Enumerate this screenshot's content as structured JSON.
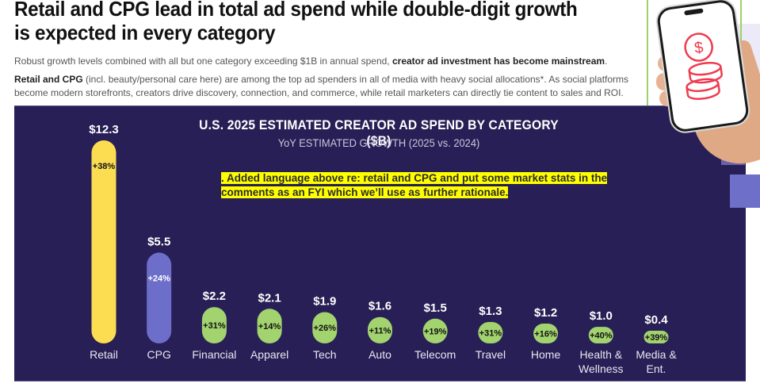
{
  "headline": "Retail and CPG lead in total ad spend while double-digit growth is expected in every category",
  "lead1": {
    "text": "Robust growth levels combined with all but one category exceeding $1B in annual spend, ",
    "bold": "creator ad investment has become mainstream",
    "end": "."
  },
  "lead2": {
    "bold": "Retail and CPG",
    "text": " (incl. beauty/personal care here) are among the top ad spenders in all of media with heavy social allocations*. As social platforms become modern storefronts, creators drive discovery, connection, and commerce, while retail marketers can directly tie content to sales and ROI."
  },
  "note": ". Added language above re: retail and CPG and put some market stats in the comments as an FYI which we’ll use as further rationale.",
  "decor": {
    "phone_icon": "dollar-coins-icon",
    "icon_color": "#ef3b4f"
  },
  "chart_data": {
    "type": "bar",
    "title": "U.S. 2025 ESTIMATED CREATOR AD SPEND BY CATEGORY ($B)",
    "subtitle": "YoY ESTIMATED GROWTH (2025 vs. 2024)",
    "xlabel": "",
    "ylabel": "",
    "ylim": [
      0,
      12.3
    ],
    "grid": false,
    "categories": [
      [
        "Retail"
      ],
      [
        "CPG"
      ],
      [
        "Financial"
      ],
      [
        "Apparel"
      ],
      [
        "Tech"
      ],
      [
        "Auto"
      ],
      [
        "Telecom"
      ],
      [
        "Travel"
      ],
      [
        "Home"
      ],
      [
        "Health &",
        "Wellness"
      ],
      [
        "Media &",
        "Ent."
      ]
    ],
    "values": [
      12.3,
      5.5,
      2.2,
      2.1,
      1.9,
      1.6,
      1.5,
      1.3,
      1.2,
      1.0,
      0.4
    ],
    "value_labels": [
      "$12.3",
      "$5.5",
      "$2.2",
      "$2.1",
      "$1.9",
      "$1.6",
      "$1.5",
      "$1.3",
      "$1.2",
      "$1.0",
      "$0.4"
    ],
    "growth_labels": [
      "+38%",
      "+24%",
      "+31%",
      "+14%",
      "+26%",
      "+11%",
      "+19%",
      "+31%",
      "+16%",
      "+40%",
      "+39%"
    ],
    "growth_pct": [
      38,
      24,
      31,
      14,
      26,
      11,
      19,
      31,
      16,
      40,
      39
    ],
    "colors": {
      "retail": "#fcdd52",
      "cpg": "#6c6ec9",
      "other": "#a3d36f",
      "background": "#271f55"
    }
  }
}
